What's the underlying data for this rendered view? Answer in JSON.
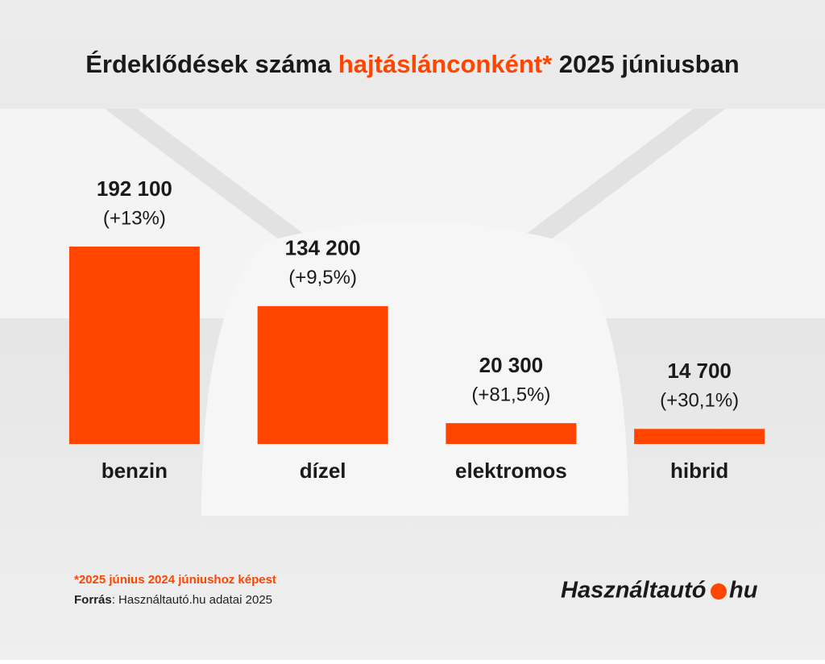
{
  "chart_data": {
    "type": "bar",
    "title": [
      "Érdeklődések száma ",
      "hajtáslánconként*",
      " 2025 júniusban"
    ],
    "categories": [
      "benzin",
      "dízel",
      "elektromos",
      "hibrid"
    ],
    "values": [
      192100,
      134200,
      20300,
      14700
    ],
    "value_labels": [
      "192 100",
      "134 200",
      "20 300",
      "14 700"
    ],
    "changes": [
      13,
      9.5,
      81.5,
      30.1
    ],
    "change_labels": [
      "(+13%)",
      "(+9,5%)",
      "(+81,5%)",
      "(+30,1%)"
    ],
    "color": "#ff4500",
    "footnote": "*2025 június 2024 júniushoz képest",
    "source_label": "Forrás",
    "source_text": ": Használtautó.hu adatai 2025",
    "logo": [
      "Használtautó",
      "hu"
    ]
  }
}
